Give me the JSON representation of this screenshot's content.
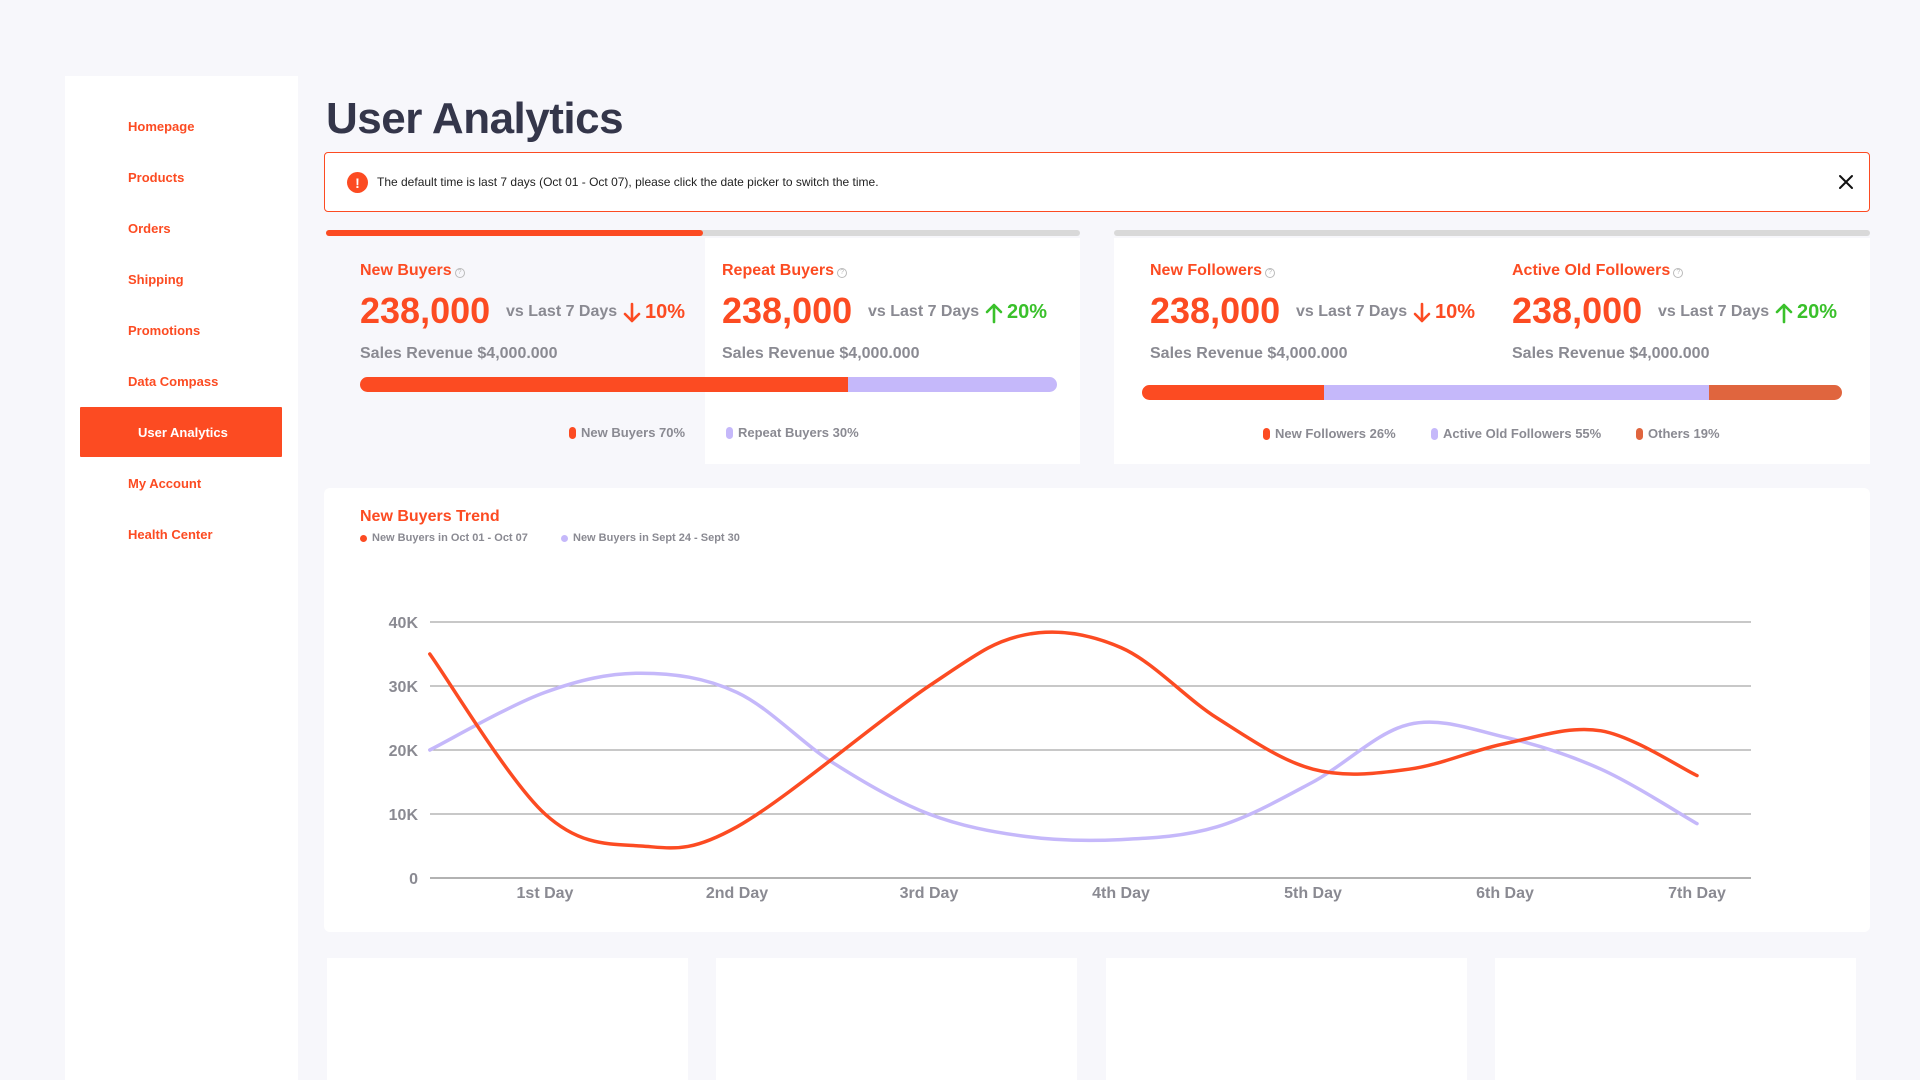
{
  "nav": {
    "items": [
      {
        "label": "Homepage",
        "active": false
      },
      {
        "label": "Products",
        "active": false
      },
      {
        "label": "Orders",
        "active": false
      },
      {
        "label": "Shipping",
        "active": false
      },
      {
        "label": "Promotions",
        "active": false
      },
      {
        "label": "Data Compass",
        "active": false
      },
      {
        "label": "User Analytics",
        "active": true
      },
      {
        "label": "My Account",
        "active": false
      },
      {
        "label": "Health Center",
        "active": false
      }
    ]
  },
  "page": {
    "title": "User Analytics"
  },
  "alert": {
    "icon": "exclamation-icon",
    "text": "The default time is last 7 days (Oct 01 - Oct 07), please click the date picker to switch the time."
  },
  "buyers_card": {
    "progress_fraction": 0.5,
    "metrics": [
      {
        "label": "New Buyers",
        "value": "238,000",
        "vs": "vs Last 7 Days",
        "change": "10%",
        "direction": "down",
        "sub": "Sales Revenue $4,000.000"
      },
      {
        "label": "Repeat Buyers",
        "value": "238,000",
        "vs": "vs Last 7 Days",
        "change": "20%",
        "direction": "up",
        "sub": "Sales Revenue $4,000.000"
      }
    ],
    "split": [
      {
        "label": "New Buyers 70%",
        "percent": 70,
        "color": "#fc4b22"
      },
      {
        "label": "Repeat Buyers 30%",
        "percent": 30,
        "color": "#c5b8fa"
      }
    ]
  },
  "followers_card": {
    "progress_fraction": 0,
    "metrics": [
      {
        "label": "New Followers",
        "value": "238,000",
        "vs": "vs Last 7 Days",
        "change": "10%",
        "direction": "down",
        "sub": "Sales Revenue $4,000.000"
      },
      {
        "label": "Active Old Followers",
        "value": "238,000",
        "vs": "vs Last 7 Days",
        "change": "20%",
        "direction": "up",
        "sub": "Sales Revenue $4,000.000"
      }
    ],
    "split": [
      {
        "label": "New Followers 26%",
        "percent": 26,
        "color": "#fc4b22"
      },
      {
        "label": "Active Old Followers 55%",
        "percent": 55,
        "color": "#c5b8fa"
      },
      {
        "label": "Others 19%",
        "percent": 19,
        "color": "#e0653e"
      }
    ]
  },
  "colors": {
    "accent": "#fc4b22",
    "secondary": "#c5b8fa",
    "up": "#3ac12b",
    "text": "#34364a",
    "muted": "#8a8a92"
  },
  "chart_data": {
    "type": "line",
    "title": "New Buyers Trend",
    "categories": [
      "1st Day",
      "2nd Day",
      "3rd Day",
      "4th Day",
      "5th Day",
      "6th Day",
      "7th Day"
    ],
    "yticks": [
      "0",
      "10K",
      "20K",
      "30K",
      "40K"
    ],
    "ylim": [
      0,
      40000
    ],
    "grid": true,
    "legend_position": "top-left",
    "series": [
      {
        "name": "New Buyers in Oct 01 - Oct 07",
        "color": "#fc4b22",
        "x": [
          0.4,
          1.0,
          1.5,
          2.0,
          3.0,
          3.5,
          4.0,
          4.5,
          5.0,
          5.5,
          6.0,
          6.5,
          7.0
        ],
        "values": [
          35000,
          10000,
          5000,
          8000,
          30000,
          38000,
          36000,
          25000,
          17000,
          17000,
          21000,
          23000,
          16000
        ]
      },
      {
        "name": "New Buyers in Sept 24 - Sept 30",
        "color": "#c5b8fa",
        "x": [
          0.4,
          1.0,
          1.5,
          2.0,
          2.5,
          3.0,
          3.5,
          4.0,
          4.5,
          5.0,
          5.5,
          6.0,
          6.5,
          7.0
        ],
        "values": [
          20000,
          29000,
          32000,
          29000,
          18000,
          10000,
          6500,
          6000,
          8000,
          15000,
          24000,
          22000,
          17000,
          8500
        ]
      }
    ]
  }
}
